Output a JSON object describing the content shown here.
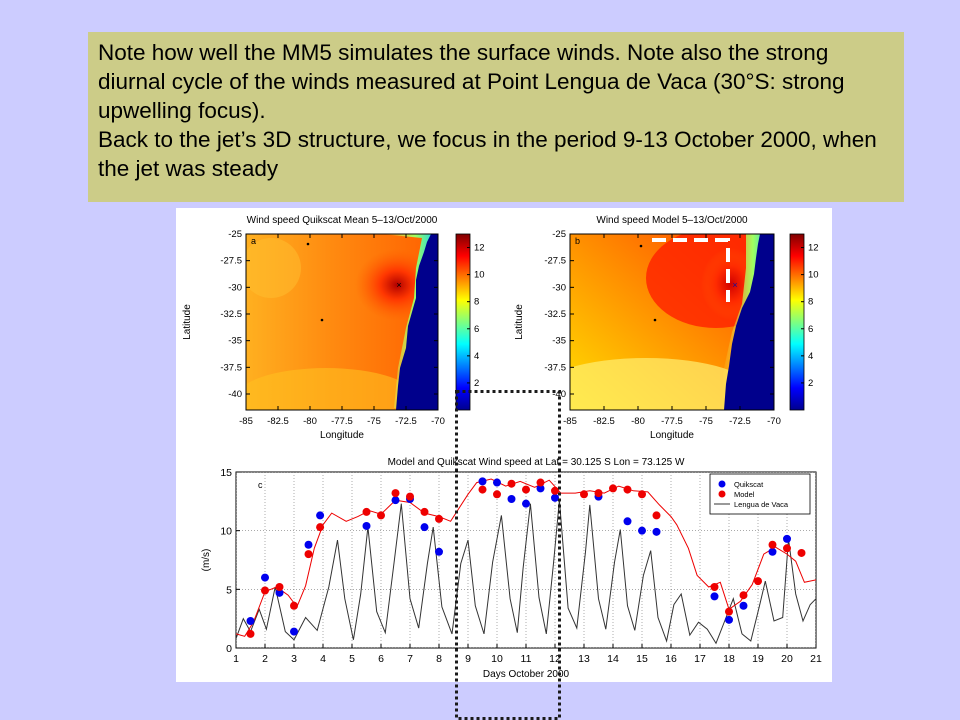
{
  "note": {
    "line1": "Note how well the MM5 simulates the surface winds. Note also the strong diurnal cycle of the winds measured at Point Lengua de Vaca (30°S: strong upwelling focus).",
    "line2": "Back to the jet’s 3D structure, we focus in the period 9-13 October 2000, when the jet was steady"
  },
  "colors": {
    "background": "#ccccff",
    "note_box": "#cccc88",
    "quikscat": "#0000ee",
    "model": "#ee0000",
    "lengua": "#333333",
    "land": "#00008c"
  },
  "chart_data": [
    {
      "type": "heatmap",
      "panel": "a",
      "title": "Wind speed Quikscat Mean 5–13/Oct/2000",
      "xlabel": "Longitude",
      "ylabel": "Latitude",
      "xlim": [
        -85,
        -70
      ],
      "ylim": [
        -41.5,
        -25
      ],
      "x_ticks": [
        "-85",
        "-82.5",
        "-80",
        "-77.5",
        "-75",
        "-72.5",
        "-70"
      ],
      "y_ticks": [
        "-25",
        "-27.5",
        "-30",
        "-32.5",
        "-35",
        "-37.5",
        "-40"
      ],
      "colorbar": {
        "min": 0,
        "max": 13,
        "ticks": [
          "2",
          "4",
          "6",
          "8",
          "10",
          "12"
        ]
      },
      "max_center": {
        "lon": -72.3,
        "lat": -29.8,
        "value": 12
      }
    },
    {
      "type": "heatmap",
      "panel": "b",
      "title": "Wind speed Model 5–13/Oct/2000",
      "xlabel": "Longitude",
      "ylabel": "Latitude",
      "xlim": [
        -85,
        -70
      ],
      "ylim": [
        -41.5,
        -25
      ],
      "x_ticks": [
        "-85",
        "-82.5",
        "-80",
        "-77.5",
        "-75",
        "-72.5",
        "-70"
      ],
      "y_ticks": [
        "-25",
        "-27.5",
        "-30",
        "-32.5",
        "-35",
        "-37.5",
        "-40"
      ],
      "colorbar": {
        "min": 0,
        "max": 13,
        "ticks": [
          "2",
          "4",
          "6",
          "8",
          "10",
          "12"
        ]
      },
      "max_center": {
        "lon": -73.5,
        "lat": -28.8,
        "value": 13
      }
    },
    {
      "type": "line",
      "panel": "c",
      "title": "Model and Quikscat Wind speed at Lat = 30.125 S Lon = 73.125 W",
      "xlabel": "Days October 2000",
      "ylabel": "(m/s)",
      "xlim": [
        1,
        21
      ],
      "ylim": [
        0,
        15
      ],
      "x_ticks": [
        "1",
        "2",
        "3",
        "4",
        "5",
        "6",
        "7",
        "8",
        "9",
        "10",
        "11",
        "12",
        "13",
        "14",
        "15",
        "16",
        "17",
        "18",
        "19",
        "20",
        "21"
      ],
      "y_ticks": [
        "0",
        "5",
        "10",
        "15"
      ],
      "legend": [
        "Quikscat",
        "Model",
        "Lengua de Vaca"
      ],
      "legend_position": "top-right",
      "quikscat": [
        [
          1.5,
          2.3
        ],
        [
          2,
          6
        ],
        [
          2.5,
          4.7
        ],
        [
          3,
          1.4
        ],
        [
          3.5,
          8.8
        ],
        [
          3.9,
          11.3
        ],
        [
          5.5,
          10.4
        ],
        [
          6.5,
          12.6
        ],
        [
          7,
          12.7
        ],
        [
          7.5,
          10.3
        ],
        [
          8,
          8.2
        ],
        [
          9.5,
          14.2
        ],
        [
          10,
          14.1
        ],
        [
          10.5,
          12.7
        ],
        [
          11,
          12.3
        ],
        [
          11.5,
          13.6
        ],
        [
          12,
          12.8
        ],
        [
          13.5,
          12.9
        ],
        [
          14.5,
          10.8
        ],
        [
          15,
          10
        ],
        [
          15.5,
          9.9
        ],
        [
          17.5,
          4.4
        ],
        [
          18,
          2.4
        ],
        [
          18.5,
          3.6
        ],
        [
          19.5,
          8.2
        ],
        [
          20,
          9.3
        ]
      ],
      "model": [
        [
          1.5,
          1.2
        ],
        [
          2,
          4.9
        ],
        [
          2.5,
          5.2
        ],
        [
          3,
          3.6
        ],
        [
          3.5,
          8
        ],
        [
          3.9,
          10.3
        ],
        [
          5.5,
          11.6
        ],
        [
          6,
          11.3
        ],
        [
          6.5,
          13.2
        ],
        [
          7,
          12.9
        ],
        [
          7.5,
          11.6
        ],
        [
          8,
          11
        ],
        [
          9.5,
          13.5
        ],
        [
          10,
          13.1
        ],
        [
          10.5,
          14
        ],
        [
          11,
          13.5
        ],
        [
          11.5,
          14.1
        ],
        [
          12,
          13.4
        ],
        [
          13,
          13.1
        ],
        [
          13.5,
          13.2
        ],
        [
          14,
          13.6
        ],
        [
          14.5,
          13.5
        ],
        [
          15,
          13.1
        ],
        [
          15.5,
          11.3
        ],
        [
          17.5,
          5.2
        ],
        [
          18,
          3.1
        ],
        [
          18.5,
          4.5
        ],
        [
          19,
          5.7
        ],
        [
          19.5,
          8.8
        ],
        [
          20,
          8.5
        ],
        [
          20.5,
          8.1
        ]
      ],
      "model_curve": [
        [
          1,
          1.2
        ],
        [
          1.3,
          1
        ],
        [
          1.6,
          2.2
        ],
        [
          2,
          4.8
        ],
        [
          2.4,
          5.2
        ],
        [
          2.8,
          4.5
        ],
        [
          3.1,
          3.5
        ],
        [
          3.4,
          5.3
        ],
        [
          3.7,
          8.5
        ],
        [
          4,
          10.5
        ],
        [
          4.3,
          11.5
        ],
        [
          4.8,
          10.8
        ],
        [
          5.2,
          11.2
        ],
        [
          5.6,
          11.7
        ],
        [
          6,
          11.4
        ],
        [
          6.5,
          12.6
        ],
        [
          7,
          12.4
        ],
        [
          7.5,
          11.5
        ],
        [
          8,
          11.2
        ],
        [
          8.4,
          10.8
        ],
        [
          9,
          13.1
        ],
        [
          9.3,
          14.1
        ],
        [
          9.8,
          14.4
        ],
        [
          10.3,
          13.8
        ],
        [
          10.8,
          14.2
        ],
        [
          11.3,
          13.7
        ],
        [
          11.8,
          14.3
        ],
        [
          12.2,
          13.2
        ],
        [
          12.7,
          13.2
        ],
        [
          13.2,
          13.4
        ],
        [
          13.7,
          13.2
        ],
        [
          14.2,
          13.8
        ],
        [
          14.7,
          13.4
        ],
        [
          15.2,
          13.3
        ],
        [
          15.6,
          12.2
        ],
        [
          16,
          11.2
        ],
        [
          16.2,
          10.5
        ],
        [
          16.6,
          8.5
        ],
        [
          16.9,
          6.2
        ],
        [
          17.3,
          5.2
        ],
        [
          17.7,
          5.6
        ],
        [
          18,
          3.3
        ],
        [
          18.4,
          4
        ],
        [
          18.8,
          5.4
        ],
        [
          19.2,
          8
        ],
        [
          19.6,
          8.6
        ],
        [
          20,
          8
        ],
        [
          20.3,
          7.4
        ],
        [
          20.6,
          5.6
        ],
        [
          21,
          5.8
        ]
      ],
      "lengua_de_vaca": [
        [
          1,
          0.8
        ],
        [
          1.25,
          2.5
        ],
        [
          1.5,
          1.4
        ],
        [
          1.8,
          3.3
        ],
        [
          2.05,
          1.6
        ],
        [
          2.35,
          5.2
        ],
        [
          2.7,
          1.4
        ],
        [
          3,
          0.7
        ],
        [
          3.4,
          2.6
        ],
        [
          3.8,
          1.5
        ],
        [
          4.2,
          5.2
        ],
        [
          4.5,
          9.2
        ],
        [
          4.75,
          4.2
        ],
        [
          5.05,
          0.7
        ],
        [
          5.3,
          4.6
        ],
        [
          5.55,
          10.3
        ],
        [
          5.85,
          3.1
        ],
        [
          6.15,
          1.3
        ],
        [
          6.45,
          7.3
        ],
        [
          6.7,
          12.3
        ],
        [
          7,
          4.2
        ],
        [
          7.3,
          1.7
        ],
        [
          7.6,
          7.2
        ],
        [
          7.8,
          10.3
        ],
        [
          8.1,
          3.5
        ],
        [
          8.45,
          1.2
        ],
        [
          8.75,
          7.2
        ],
        [
          9,
          9.2
        ],
        [
          9.25,
          3.6
        ],
        [
          9.55,
          1.2
        ],
        [
          9.85,
          7.3
        ],
        [
          10.15,
          11.3
        ],
        [
          10.45,
          4.2
        ],
        [
          10.7,
          1.3
        ],
        [
          10.9,
          6.8
        ],
        [
          11.15,
          12.3
        ],
        [
          11.45,
          4.3
        ],
        [
          11.7,
          1.2
        ],
        [
          11.95,
          7.3
        ],
        [
          12.15,
          12.6
        ],
        [
          12.45,
          3.4
        ],
        [
          12.75,
          1.7
        ],
        [
          13.05,
          8.2
        ],
        [
          13.2,
          12.2
        ],
        [
          13.5,
          4.2
        ],
        [
          13.75,
          1.6
        ],
        [
          14.05,
          7.3
        ],
        [
          14.25,
          10.1
        ],
        [
          14.5,
          3.6
        ],
        [
          14.75,
          1.5
        ],
        [
          15.05,
          6.2
        ],
        [
          15.3,
          8.3
        ],
        [
          15.55,
          2.6
        ],
        [
          15.85,
          0.6
        ],
        [
          16.1,
          3.7
        ],
        [
          16.35,
          4.6
        ],
        [
          16.65,
          1.1
        ],
        [
          16.95,
          2.2
        ],
        [
          17.25,
          1.6
        ],
        [
          17.55,
          0.4
        ],
        [
          17.85,
          2.3
        ],
        [
          18.15,
          4.2
        ],
        [
          18.45,
          1.2
        ],
        [
          18.75,
          0.6
        ],
        [
          19.05,
          3.6
        ],
        [
          19.25,
          5.7
        ],
        [
          19.55,
          2.3
        ],
        [
          19.85,
          2.6
        ],
        [
          20.05,
          9.3
        ],
        [
          20.3,
          4.6
        ],
        [
          20.55,
          2.3
        ],
        [
          20.8,
          3.7
        ],
        [
          21,
          4.2
        ]
      ]
    }
  ]
}
